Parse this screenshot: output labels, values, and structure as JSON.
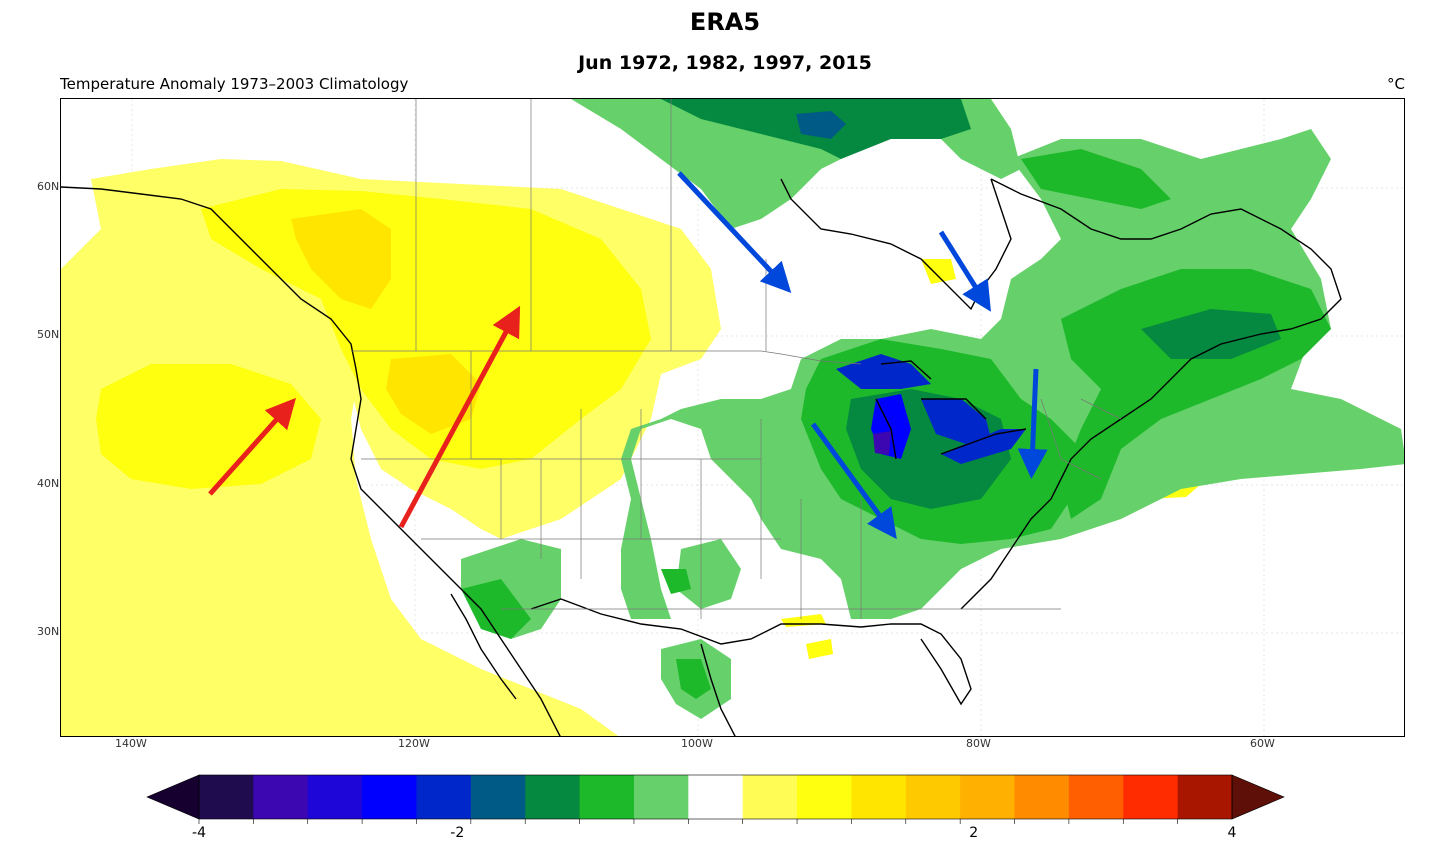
{
  "title": "ERA5",
  "subtitle": "Jun 1972, 1982, 1997, 2015",
  "left_label": "Temperature Anomaly  1973–2003 Climatology",
  "unit_label": "°C",
  "lat_ticks": [
    "60N",
    "50N",
    "40N",
    "30N"
  ],
  "lon_ticks": [
    "140W",
    "120W",
    "100W",
    "80W",
    "60W"
  ],
  "colorbar": {
    "colors": [
      "#1f0c4f",
      "#3c07b0",
      "#1e06d8",
      "#0000fe",
      "#0027c9",
      "#005a86",
      "#05883f",
      "#1db92b",
      "#66d16a",
      "#ffffff",
      "#fffc55",
      "#ffff10",
      "#ffe500",
      "#ffc900",
      "#ffb000",
      "#ff8b00",
      "#ff5f00",
      "#ff2c00",
      "#a81600"
    ],
    "min_color": "#16002f",
    "max_color": "#5e0f07",
    "labels": [
      "-4",
      "-2",
      "2",
      "4"
    ],
    "label_values": [
      -4,
      -2,
      2,
      4
    ],
    "range": [
      -4,
      4
    ]
  },
  "arrows": [
    {
      "name": "red-arrow-pacific",
      "color": "#e8211c"
    },
    {
      "name": "red-arrow-west",
      "color": "#e8211c"
    },
    {
      "name": "blue-arrow-canada",
      "color": "#0048dc"
    },
    {
      "name": "blue-arrow-hudson",
      "color": "#0048dc"
    },
    {
      "name": "blue-arrow-midwest",
      "color": "#0048dc"
    },
    {
      "name": "blue-arrow-east",
      "color": "#0048dc"
    }
  ]
}
